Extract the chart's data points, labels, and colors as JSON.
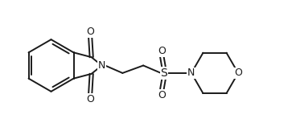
{
  "bg_color": "#ffffff",
  "line_color": "#1a1a1a",
  "line_width": 1.4,
  "font_size": 8.5,
  "figsize": [
    3.63,
    1.63
  ],
  "dpi": 100,
  "xlim": [
    0,
    11
  ],
  "ylim": [
    0,
    5
  ]
}
